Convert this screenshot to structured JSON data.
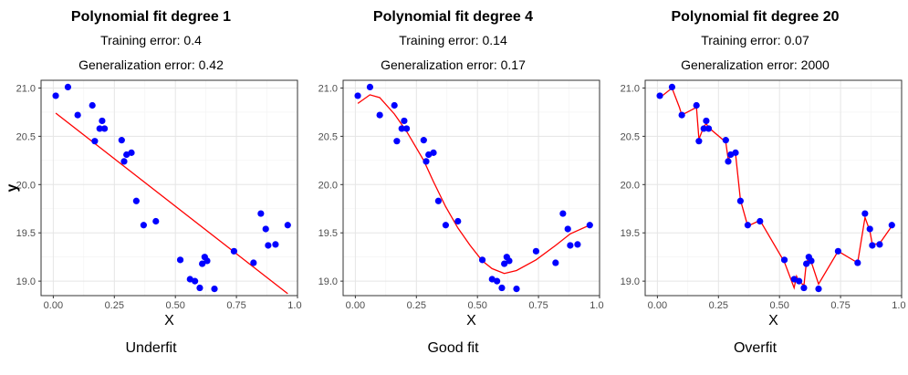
{
  "chart_data": [
    {
      "type": "scatter",
      "title": "Polynomial fit degree 1",
      "subtitle_training": "Training error: 0.4",
      "subtitle_generalization": "Generalization error: 0.42",
      "caption": "Underfit",
      "xlabel": "X",
      "ylabel": "y",
      "xlim": [
        -0.05,
        1.0
      ],
      "ylim": [
        18.85,
        21.08
      ],
      "xticks": [
        0.0,
        0.25,
        0.5,
        0.75,
        1.0
      ],
      "xtick_labels": [
        "0.00",
        "0.25",
        "0.50",
        "0.75",
        "1.00"
      ],
      "yticks": [
        19.0,
        19.5,
        20.0,
        20.5,
        21.0
      ],
      "ytick_labels": [
        "19.0",
        "19.5",
        "20.0",
        "20.5",
        "21.0"
      ],
      "points_x": [
        0.01,
        0.06,
        0.1,
        0.16,
        0.17,
        0.19,
        0.2,
        0.21,
        0.28,
        0.29,
        0.3,
        0.32,
        0.34,
        0.37,
        0.42,
        0.52,
        0.56,
        0.58,
        0.6,
        0.61,
        0.62,
        0.63,
        0.66,
        0.74,
        0.82,
        0.85,
        0.87,
        0.88,
        0.91,
        0.96
      ],
      "points_y": [
        20.92,
        21.01,
        20.72,
        20.82,
        20.45,
        20.58,
        20.66,
        20.58,
        20.46,
        20.24,
        20.31,
        20.33,
        19.83,
        19.58,
        19.62,
        19.22,
        19.02,
        19.0,
        18.93,
        19.18,
        19.25,
        19.21,
        18.92,
        19.31,
        19.19,
        19.7,
        19.54,
        19.37,
        19.38,
        19.58
      ],
      "fit_x": [
        0.01,
        0.96
      ],
      "fit_y": [
        20.74,
        18.87
      ],
      "point_color": "#0000ff",
      "fit_color": "#ff0000"
    },
    {
      "type": "scatter",
      "title": "Polynomial fit degree 4",
      "subtitle_training": "Training error: 0.14",
      "subtitle_generalization": "Generalization error: 0.17",
      "caption": "Good fit",
      "xlabel": "X",
      "ylabel": "",
      "xlim": [
        -0.05,
        1.0
      ],
      "ylim": [
        18.85,
        21.08
      ],
      "xticks": [
        0.0,
        0.25,
        0.5,
        0.75,
        1.0
      ],
      "xtick_labels": [
        "0.00",
        "0.25",
        "0.50",
        "0.75",
        "1.00"
      ],
      "yticks": [
        19.0,
        19.5,
        20.0,
        20.5,
        21.0
      ],
      "ytick_labels": [
        "19.0",
        "19.5",
        "20.0",
        "20.5",
        "21.0"
      ],
      "points_x": [
        0.01,
        0.06,
        0.1,
        0.16,
        0.17,
        0.19,
        0.2,
        0.21,
        0.28,
        0.29,
        0.3,
        0.32,
        0.34,
        0.37,
        0.42,
        0.52,
        0.56,
        0.58,
        0.6,
        0.61,
        0.62,
        0.63,
        0.66,
        0.74,
        0.82,
        0.85,
        0.87,
        0.88,
        0.91,
        0.96
      ],
      "points_y": [
        20.92,
        21.01,
        20.72,
        20.82,
        20.45,
        20.58,
        20.66,
        20.58,
        20.46,
        20.24,
        20.31,
        20.33,
        19.83,
        19.58,
        19.62,
        19.22,
        19.02,
        19.0,
        18.93,
        19.18,
        19.25,
        19.21,
        18.92,
        19.31,
        19.19,
        19.7,
        19.54,
        19.37,
        19.38,
        19.58
      ],
      "fit_x": [
        0.01,
        0.06,
        0.1,
        0.16,
        0.21,
        0.28,
        0.32,
        0.37,
        0.42,
        0.47,
        0.52,
        0.56,
        0.61,
        0.66,
        0.74,
        0.82,
        0.88,
        0.96
      ],
      "fit_y": [
        20.84,
        20.93,
        20.9,
        20.73,
        20.55,
        20.25,
        20.03,
        19.77,
        19.55,
        19.37,
        19.21,
        19.13,
        19.08,
        19.11,
        19.22,
        19.37,
        19.49,
        19.58
      ],
      "point_color": "#0000ff",
      "fit_color": "#ff0000"
    },
    {
      "type": "scatter",
      "title": "Polynomial fit degree 20",
      "subtitle_training": "Training error: 0.07",
      "subtitle_generalization": "Generalization error: 2000",
      "caption": "Overfit",
      "xlabel": "X",
      "ylabel": "",
      "xlim": [
        -0.05,
        1.0
      ],
      "ylim": [
        18.85,
        21.08
      ],
      "xticks": [
        0.0,
        0.25,
        0.5,
        0.75,
        1.0
      ],
      "xtick_labels": [
        "0.00",
        "0.25",
        "0.50",
        "0.75",
        "1.00"
      ],
      "yticks": [
        19.0,
        19.5,
        20.0,
        20.5,
        21.0
      ],
      "ytick_labels": [
        "19.0",
        "19.5",
        "20.0",
        "20.5",
        "21.0"
      ],
      "points_x": [
        0.01,
        0.06,
        0.1,
        0.16,
        0.17,
        0.19,
        0.2,
        0.21,
        0.28,
        0.29,
        0.3,
        0.32,
        0.34,
        0.37,
        0.42,
        0.52,
        0.56,
        0.58,
        0.6,
        0.61,
        0.62,
        0.63,
        0.66,
        0.74,
        0.82,
        0.85,
        0.87,
        0.88,
        0.91,
        0.96
      ],
      "points_y": [
        20.92,
        21.01,
        20.72,
        20.82,
        20.45,
        20.58,
        20.66,
        20.58,
        20.46,
        20.24,
        20.31,
        20.33,
        19.83,
        19.58,
        19.62,
        19.22,
        19.02,
        19.0,
        18.93,
        19.18,
        19.25,
        19.21,
        18.92,
        19.31,
        19.19,
        19.7,
        19.54,
        19.37,
        19.38,
        19.58
      ],
      "fit_x": [
        0.01,
        0.06,
        0.09,
        0.1,
        0.16,
        0.17,
        0.19,
        0.2,
        0.21,
        0.28,
        0.29,
        0.3,
        0.32,
        0.34,
        0.37,
        0.42,
        0.52,
        0.56,
        0.57,
        0.58,
        0.6,
        0.61,
        0.62,
        0.63,
        0.66,
        0.74,
        0.82,
        0.85,
        0.87,
        0.88,
        0.91,
        0.96
      ],
      "fit_y": [
        20.9,
        21.0,
        20.8,
        20.72,
        20.8,
        20.47,
        20.6,
        20.63,
        20.59,
        20.44,
        20.26,
        20.3,
        20.32,
        19.84,
        19.57,
        19.63,
        19.2,
        18.93,
        19.05,
        18.99,
        18.96,
        19.19,
        19.24,
        19.2,
        18.97,
        19.31,
        19.19,
        19.66,
        19.52,
        19.38,
        19.39,
        19.57
      ],
      "point_color": "#0000ff",
      "fit_color": "#ff0000"
    }
  ]
}
